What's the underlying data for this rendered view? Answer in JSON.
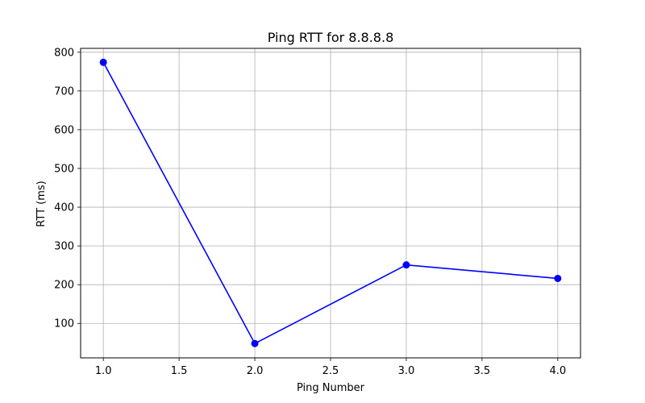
{
  "chart_data": {
    "type": "line",
    "title": "Ping RTT for 8.8.8.8",
    "xlabel": "Ping Number",
    "ylabel": "RTT (ms)",
    "x": [
      1,
      2,
      3,
      4
    ],
    "series": [
      {
        "values": [
          774,
          48,
          251,
          216
        ],
        "color": "#0000ff",
        "marker": "circle"
      }
    ],
    "xlim": [
      0.85,
      4.15
    ],
    "ylim": [
      11,
      810
    ],
    "xticks": [
      1.0,
      1.5,
      2.0,
      2.5,
      3.0,
      3.5,
      4.0
    ],
    "xtick_labels": [
      "1.0",
      "1.5",
      "2.0",
      "2.5",
      "3.0",
      "3.5",
      "4.0"
    ],
    "yticks": [
      100,
      200,
      300,
      400,
      500,
      600,
      700,
      800
    ],
    "ytick_labels": [
      "100",
      "200",
      "300",
      "400",
      "500",
      "600",
      "700",
      "800"
    ],
    "grid": true,
    "grid_color": "#b0b0b0",
    "legend": false
  }
}
